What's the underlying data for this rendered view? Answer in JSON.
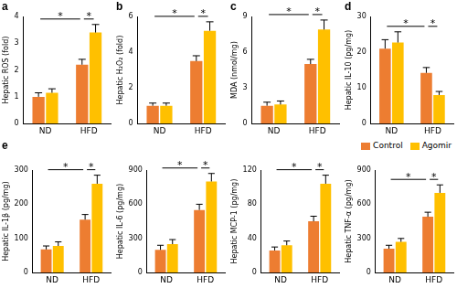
{
  "chart_data": [
    {
      "type": "bar",
      "panel": "a",
      "y_label": "Hepatic ROS (fold)",
      "categories": [
        "ND",
        "HFD"
      ],
      "series": [
        {
          "name": "Control",
          "color": "#ed7d31",
          "values": [
            1.0,
            2.2
          ],
          "errors": [
            0.15,
            0.2
          ]
        },
        {
          "name": "Agomir",
          "color": "#ffc000",
          "values": [
            1.15,
            3.4
          ],
          "errors": [
            0.15,
            0.3
          ]
        }
      ],
      "ylim": [
        0,
        4
      ],
      "yticks": [
        0,
        1,
        2,
        3,
        4
      ],
      "grid": false,
      "significance": [
        {
          "groups": [
            [
              "ND",
              "Control"
            ],
            [
              "HFD",
              "Control"
            ]
          ],
          "label": "*"
        },
        {
          "groups": [
            [
              "HFD",
              "Control"
            ],
            [
              "HFD",
              "Agomir"
            ]
          ],
          "label": "*"
        }
      ]
    },
    {
      "type": "bar",
      "panel": "b",
      "y_label": "Hepatic H₂O₂ (fold)",
      "categories": [
        "ND",
        "HFD"
      ],
      "series": [
        {
          "name": "Control",
          "color": "#ed7d31",
          "values": [
            1.0,
            3.5
          ],
          "errors": [
            0.15,
            0.3
          ]
        },
        {
          "name": "Agomir",
          "color": "#ffc000",
          "values": [
            1.0,
            5.2
          ],
          "errors": [
            0.15,
            0.5
          ]
        }
      ],
      "ylim": [
        0,
        6
      ],
      "yticks": [
        0,
        2,
        4,
        6
      ],
      "grid": false,
      "significance": [
        {
          "groups": [
            [
              "ND",
              "Control"
            ],
            [
              "HFD",
              "Control"
            ]
          ],
          "label": "*"
        },
        {
          "groups": [
            [
              "HFD",
              "Control"
            ],
            [
              "HFD",
              "Agomir"
            ]
          ],
          "label": "*"
        }
      ]
    },
    {
      "type": "bar",
      "panel": "c",
      "y_label": "MDA (nmol/mg)",
      "categories": [
        "ND",
        "HFD"
      ],
      "series": [
        {
          "name": "Control",
          "color": "#ed7d31",
          "values": [
            1.5,
            5.0
          ],
          "errors": [
            0.3,
            0.4
          ]
        },
        {
          "name": "Agomir",
          "color": "#ffc000",
          "values": [
            1.6,
            7.9
          ],
          "errors": [
            0.3,
            0.8
          ]
        }
      ],
      "ylim": [
        0,
        9
      ],
      "yticks": [
        0,
        3,
        6,
        9
      ],
      "grid": false,
      "significance": [
        {
          "groups": [
            [
              "ND",
              "Control"
            ],
            [
              "HFD",
              "Control"
            ]
          ],
          "label": "*"
        },
        {
          "groups": [
            [
              "HFD",
              "Control"
            ],
            [
              "HFD",
              "Agomir"
            ]
          ],
          "label": "*"
        }
      ]
    },
    {
      "type": "bar",
      "panel": "d",
      "y_label": "Hepatic IL-10 (pg/mg)",
      "categories": [
        "ND",
        "HFD"
      ],
      "series": [
        {
          "name": "Control",
          "color": "#ed7d31",
          "values": [
            21,
            14.2
          ],
          "errors": [
            2.5,
            1.5
          ]
        },
        {
          "name": "Agomir",
          "color": "#ffc000",
          "values": [
            22.7,
            8.0
          ],
          "errors": [
            3,
            1.0
          ]
        }
      ],
      "ylim": [
        0,
        30
      ],
      "yticks": [
        0,
        10,
        20,
        30
      ],
      "grid": false,
      "significance": [
        {
          "groups": [
            [
              "ND",
              "Control"
            ],
            [
              "HFD",
              "Control"
            ]
          ],
          "label": "*"
        },
        {
          "groups": [
            [
              "HFD",
              "Control"
            ],
            [
              "HFD",
              "Agomir"
            ]
          ],
          "label": "*"
        }
      ]
    },
    {
      "type": "bar",
      "panel": "e",
      "y_label": "Hepatic IL-1β (pg/mg)",
      "categories": [
        "ND",
        "HFD"
      ],
      "series": [
        {
          "name": "Control",
          "color": "#ed7d31",
          "values": [
            68,
            155
          ],
          "errors": [
            10,
            15
          ]
        },
        {
          "name": "Agomir",
          "color": "#ffc000",
          "values": [
            78,
            260
          ],
          "errors": [
            12,
            25
          ]
        }
      ],
      "ylim": [
        0,
        300
      ],
      "yticks": [
        0,
        100,
        200,
        300
      ],
      "grid": false,
      "significance": [
        {
          "groups": [
            [
              "ND",
              "Control"
            ],
            [
              "HFD",
              "Control"
            ]
          ],
          "label": "*"
        },
        {
          "groups": [
            [
              "HFD",
              "Control"
            ],
            [
              "HFD",
              "Agomir"
            ]
          ],
          "label": "*"
        }
      ]
    },
    {
      "type": "bar",
      "y_label": "Hepatic IL-6 (pg/mg)",
      "categories": [
        "ND",
        "HFD"
      ],
      "series": [
        {
          "name": "Control",
          "color": "#ed7d31",
          "values": [
            200,
            550
          ],
          "errors": [
            40,
            50
          ]
        },
        {
          "name": "Agomir",
          "color": "#ffc000",
          "values": [
            250,
            800
          ],
          "errors": [
            40,
            70
          ]
        }
      ],
      "ylim": [
        0,
        900
      ],
      "yticks": [
        0,
        300,
        600,
        900
      ],
      "grid": false,
      "significance": [
        {
          "groups": [
            [
              "ND",
              "Control"
            ],
            [
              "HFD",
              "Control"
            ]
          ],
          "label": "*"
        },
        {
          "groups": [
            [
              "HFD",
              "Control"
            ],
            [
              "HFD",
              "Agomir"
            ]
          ],
          "label": "*"
        }
      ]
    },
    {
      "type": "bar",
      "y_label": "Hepatic MCP-1 (pg/mg)",
      "categories": [
        "ND",
        "HFD"
      ],
      "series": [
        {
          "name": "Control",
          "color": "#ed7d31",
          "values": [
            26,
            60
          ],
          "errors": [
            4,
            6
          ]
        },
        {
          "name": "Agomir",
          "color": "#ffc000",
          "values": [
            32,
            104
          ],
          "errors": [
            5,
            10
          ]
        }
      ],
      "ylim": [
        0,
        120
      ],
      "yticks": [
        0,
        40,
        80,
        120
      ],
      "grid": false,
      "significance": [
        {
          "groups": [
            [
              "ND",
              "Control"
            ],
            [
              "HFD",
              "Control"
            ]
          ],
          "label": "*"
        },
        {
          "groups": [
            [
              "HFD",
              "Control"
            ],
            [
              "HFD",
              "Agomir"
            ]
          ],
          "label": "*"
        }
      ]
    },
    {
      "type": "bar",
      "y_label": "Hepatic TNF-α (pg/mg)",
      "categories": [
        "ND",
        "HFD"
      ],
      "legend": "top right",
      "series": [
        {
          "name": "Control",
          "color": "#ed7d31",
          "values": [
            210,
            490
          ],
          "errors": [
            30,
            40
          ]
        },
        {
          "name": "Agomir",
          "color": "#ffc000",
          "values": [
            270,
            700
          ],
          "errors": [
            30,
            70
          ]
        }
      ],
      "ylim": [
        0,
        900
      ],
      "yticks": [
        0,
        300,
        600,
        900
      ],
      "grid": false,
      "significance": [
        {
          "groups": [
            [
              "ND",
              "Control"
            ],
            [
              "HFD",
              "Control"
            ]
          ],
          "label": "*"
        },
        {
          "groups": [
            [
              "HFD",
              "Control"
            ],
            [
              "HFD",
              "Agomir"
            ]
          ],
          "label": "*"
        }
      ]
    }
  ]
}
